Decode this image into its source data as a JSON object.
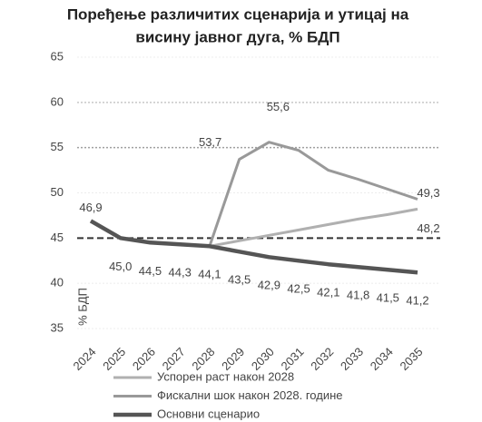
{
  "chart_data": {
    "type": "line",
    "title": [
      "Поређење различитих сценарија и утицај на",
      "висину јавног дуга, % БДП"
    ],
    "y_label": "% БДП",
    "categories": [
      "2024",
      "2025",
      "2026",
      "2027",
      "2028",
      "2029",
      "2030",
      "2031",
      "2032",
      "2033",
      "2034",
      "2035"
    ],
    "ylim": [
      35,
      65
    ],
    "yticks": [
      35,
      40,
      45,
      50,
      55,
      60,
      65
    ],
    "reference_lines": [
      {
        "value": 60,
        "color": "#c8c8c8"
      },
      {
        "value": 55,
        "color": "#a0a0a0"
      },
      {
        "value": 45,
        "color": "#333333"
      }
    ],
    "series": [
      {
        "name": "Успорен раст након 2028",
        "color": "#b0b0b0",
        "values": [
          null,
          null,
          null,
          null,
          44.1,
          44.7,
          45.3,
          45.9,
          46.5,
          47.1,
          47.6,
          48.2
        ],
        "value_labels": [
          null,
          null,
          null,
          null,
          null,
          null,
          null,
          null,
          null,
          null,
          null,
          "48,2"
        ]
      },
      {
        "name": "Фискални шок након 2028. године",
        "color": "#999999",
        "values": [
          null,
          null,
          null,
          null,
          44.1,
          53.7,
          55.6,
          54.7,
          52.5,
          51.5,
          50.4,
          49.3
        ],
        "value_labels": [
          null,
          null,
          null,
          null,
          null,
          "53,7",
          "55,6",
          null,
          null,
          null,
          null,
          "49,3"
        ]
      },
      {
        "name": "Основни сценарио",
        "color": "#555555",
        "values": [
          46.9,
          45.0,
          44.5,
          44.3,
          44.1,
          43.5,
          42.9,
          42.5,
          42.1,
          41.8,
          41.5,
          41.2
        ],
        "value_labels": [
          "46,9",
          "45,0",
          "44,5",
          "44,3",
          "44,1",
          "43,5",
          "42,9",
          "42,5",
          "42,1",
          "41,8",
          "41,5",
          "41,2"
        ]
      }
    ]
  }
}
